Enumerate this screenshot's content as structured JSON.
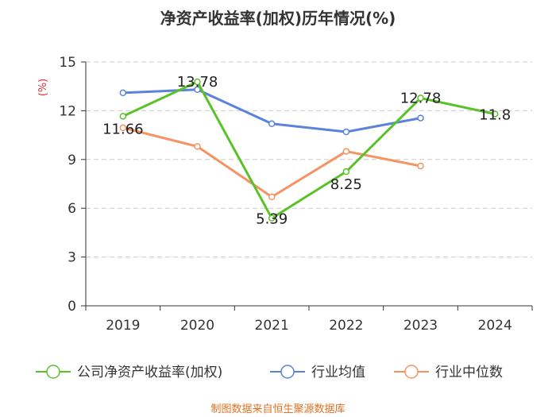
{
  "colors": {
    "company": "#5ac229",
    "industry_avg": "#5b83dc",
    "industry_median": "#f59462",
    "axis": "#333333",
    "grid": "#cccccc",
    "unit": "#e03030",
    "source": "#e07020"
  },
  "chart_data": {
    "type": "line",
    "title": "净资产收益率(加权)历年情况(%)",
    "ylabel": "(%)",
    "xlabel": "",
    "categories": [
      "2019",
      "2020",
      "2021",
      "2022",
      "2023",
      "2024"
    ],
    "ylim": [
      0,
      15
    ],
    "yticks": [
      0,
      3,
      6,
      9,
      12,
      15
    ],
    "grid": true,
    "legend_position": "bottom",
    "series": [
      {
        "key": "company",
        "name": "公司净资产收益率(加权)",
        "values": [
          11.66,
          13.78,
          5.39,
          8.25,
          12.78,
          11.8
        ],
        "labels": [
          "11.66",
          "13.78",
          "5.39",
          "8.25",
          "12.78",
          "11.8"
        ]
      },
      {
        "key": "industry_avg",
        "name": "行业均值",
        "values": [
          13.1,
          13.3,
          11.2,
          10.7,
          11.55,
          null
        ]
      },
      {
        "key": "industry_median",
        "name": "行业中位数",
        "values": [
          10.95,
          9.8,
          6.7,
          9.5,
          8.6,
          null
        ]
      }
    ],
    "source": "制图数据来自恒生聚源数据库"
  }
}
